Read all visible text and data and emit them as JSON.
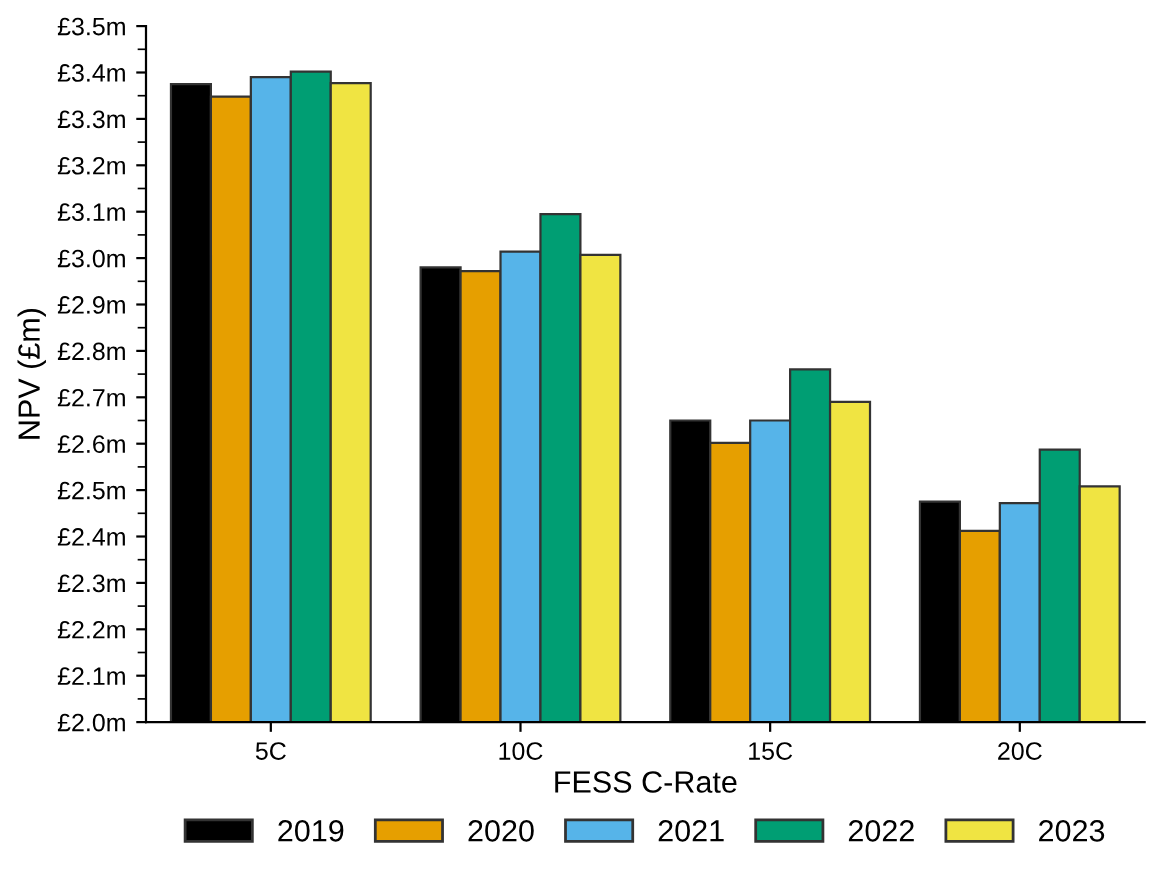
{
  "chart_data": {
    "type": "bar",
    "xlabel": "FESS C-Rate",
    "ylabel": "NPV (£m)",
    "categories": [
      "5C",
      "10C",
      "15C",
      "20C"
    ],
    "series": [
      {
        "name": "2019",
        "color": "#000000",
        "values": [
          3.375,
          2.98,
          2.65,
          2.475
        ]
      },
      {
        "name": "2020",
        "color": "#e69f00",
        "values": [
          3.348,
          2.972,
          2.602,
          2.412
        ]
      },
      {
        "name": "2021",
        "color": "#56b4e9",
        "values": [
          3.39,
          3.014,
          2.65,
          2.472
        ]
      },
      {
        "name": "2022",
        "color": "#009e73",
        "values": [
          3.402,
          3.095,
          2.76,
          2.587
        ]
      },
      {
        "name": "2023",
        "color": "#f0e442",
        "values": [
          3.377,
          3.007,
          2.69,
          2.508
        ]
      }
    ],
    "ylim": [
      2.0,
      3.5
    ],
    "yticks": [
      {
        "value": 2.0,
        "label": "£2.0m"
      },
      {
        "value": 2.1,
        "label": "£2.1m"
      },
      {
        "value": 2.2,
        "label": "£2.2m"
      },
      {
        "value": 2.3,
        "label": "£2.3m"
      },
      {
        "value": 2.4,
        "label": "£2.4m"
      },
      {
        "value": 2.5,
        "label": "£2.5m"
      },
      {
        "value": 2.6,
        "label": "£2.6m"
      },
      {
        "value": 2.7,
        "label": "£2.7m"
      },
      {
        "value": 2.8,
        "label": "£2.8m"
      },
      {
        "value": 2.9,
        "label": "£2.9m"
      },
      {
        "value": 3.0,
        "label": "£3.0m"
      },
      {
        "value": 3.1,
        "label": "£3.1m"
      },
      {
        "value": 3.2,
        "label": "£3.2m"
      },
      {
        "value": 3.3,
        "label": "£3.3m"
      },
      {
        "value": 3.4,
        "label": "£3.4m"
      },
      {
        "value": 3.5,
        "label": "£3.5m"
      }
    ],
    "grid": false,
    "legend": "bottom"
  }
}
